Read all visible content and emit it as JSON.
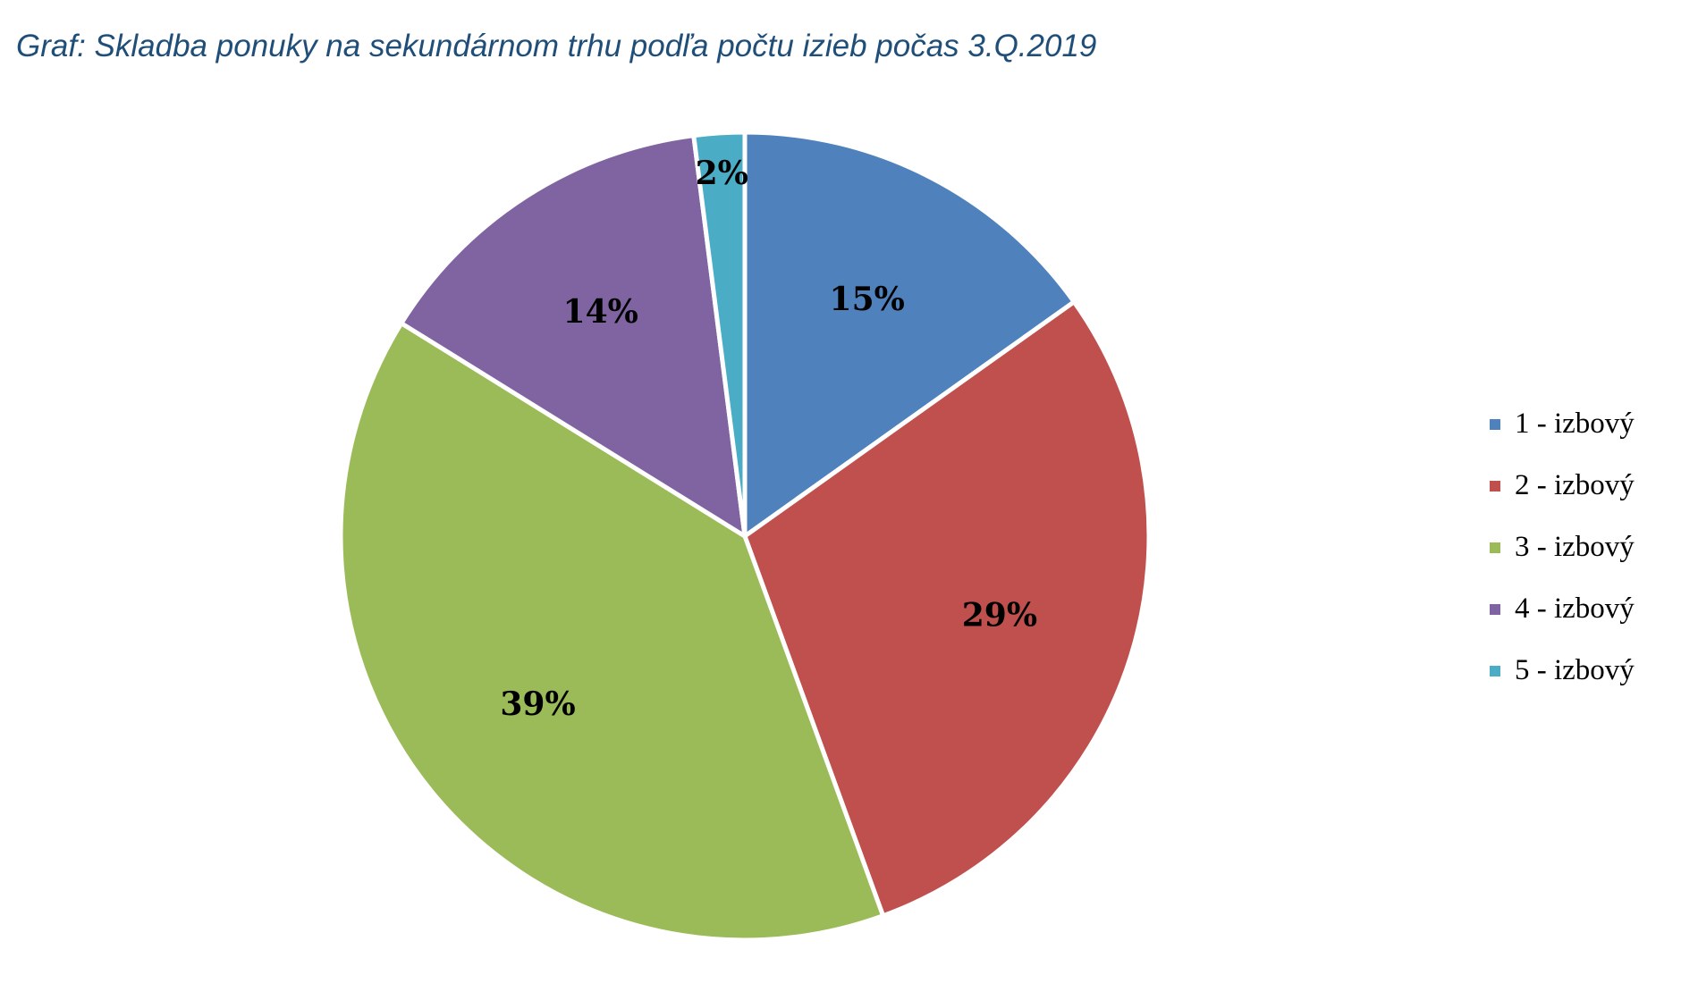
{
  "chart_data": {
    "type": "pie",
    "title": "Graf: Skladba ponuky na sekundárnom trhu podľa počtu izieb počas 3.Q.2019",
    "categories": [
      "1 - izbový",
      "2 - izbový",
      "3 - izbový",
      "4 - izbový",
      "5 - izbový"
    ],
    "values": [
      15,
      29,
      39,
      14,
      2
    ],
    "labels": [
      "15%",
      "29%",
      "39%",
      "14%",
      "2%"
    ],
    "colors": [
      "#4F81BD",
      "#C0504D",
      "#9BBB59",
      "#8064A2",
      "#4BACC6"
    ],
    "start_angle": "12 o'clock",
    "direction": "clockwise",
    "legend": "right"
  }
}
